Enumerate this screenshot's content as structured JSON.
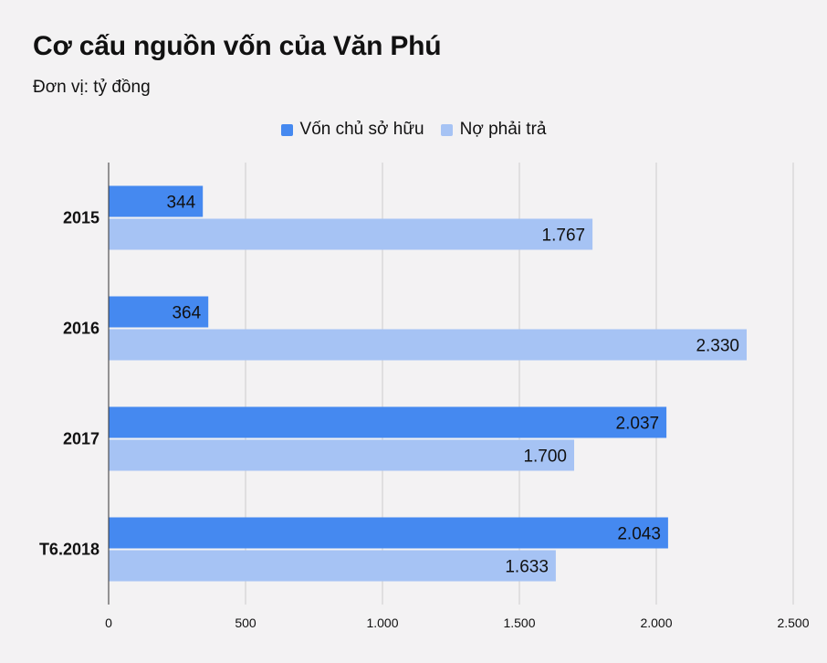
{
  "header": {
    "title": "Cơ cấu nguồn vốn của Văn Phú",
    "subtitle": "Đơn vị: tỷ đồng"
  },
  "colors": {
    "series1": "#4589f0",
    "series2": "#a6c3f4",
    "grid": "#cccccc",
    "axis": "#333333",
    "background": "#f3f2f3"
  },
  "chart_data": {
    "type": "bar",
    "orientation": "horizontal",
    "title": "Cơ cấu nguồn vốn của Văn Phú",
    "subtitle": "Đơn vị: tỷ đồng",
    "categories": [
      "2015",
      "2016",
      "2017",
      "T6.2018"
    ],
    "series": [
      {
        "name": "Vốn chủ sở hữu",
        "values": [
          344,
          364,
          2037,
          2043
        ],
        "labels": [
          "344",
          "364",
          "2.037",
          "2.043"
        ]
      },
      {
        "name": "Nợ phải trả",
        "values": [
          1767,
          2330,
          1700,
          1633
        ],
        "labels": [
          "1.767",
          "2.330",
          "1.700",
          "1.633"
        ]
      }
    ],
    "xlim": [
      0,
      2500
    ],
    "xticks": [
      0,
      500,
      1000,
      1500,
      2000,
      2500
    ],
    "xtick_labels": [
      "0",
      "500",
      "1.000",
      "1.500",
      "2.000",
      "2.500"
    ],
    "grid": true,
    "legend_position": "top-center"
  }
}
